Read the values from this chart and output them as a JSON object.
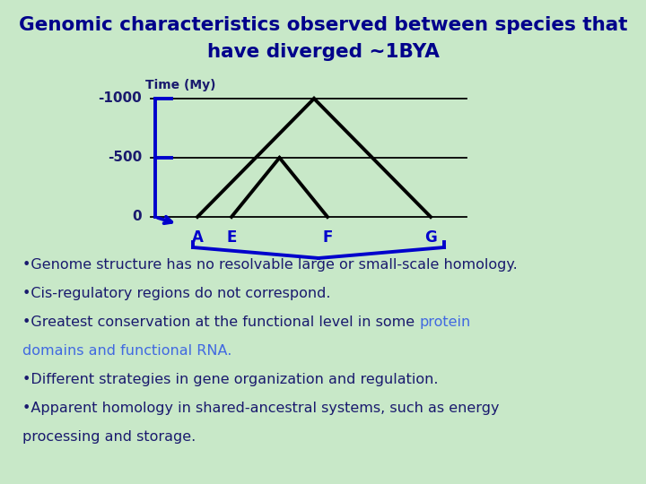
{
  "title_line1": "Genomic characteristics observed between species that",
  "title_line2": "have diverged ~1BYA",
  "title_color": "#00008B",
  "bg_color": "#c8e8c8",
  "time_label": "Time (My)",
  "bracket_color": "#0000CC",
  "tree_color": "#000000",
  "text_dark": "#1a1a6e",
  "text_blue": "#4169e1",
  "bullet_lines": [
    {
      "parts": [
        {
          "text": "•Genome structure has no resolvable large or small-scale homology.",
          "color": "#1a1a6e"
        }
      ]
    },
    {
      "parts": [
        {
          "text": "•Cis-regulatory regions do not correspond.",
          "color": "#1a1a6e"
        }
      ]
    },
    {
      "parts": [
        {
          "text": "•Greatest conservation at the functional level in some ",
          "color": "#1a1a6e"
        },
        {
          "text": "protein",
          "color": "#4169e1"
        }
      ]
    },
    {
      "parts": [
        {
          "text": "domains and functional RNA.",
          "color": "#4169e1"
        }
      ]
    },
    {
      "parts": [
        {
          "text": "•Different strategies in gene organization and regulation.",
          "color": "#1a1a6e"
        }
      ]
    },
    {
      "parts": [
        {
          "text": "•Apparent homology in shared-ancestral systems, such as energy",
          "color": "#1a1a6e"
        }
      ]
    },
    {
      "parts": [
        {
          "text": "processing and storage.",
          "color": "#1a1a6e"
        }
      ]
    }
  ]
}
